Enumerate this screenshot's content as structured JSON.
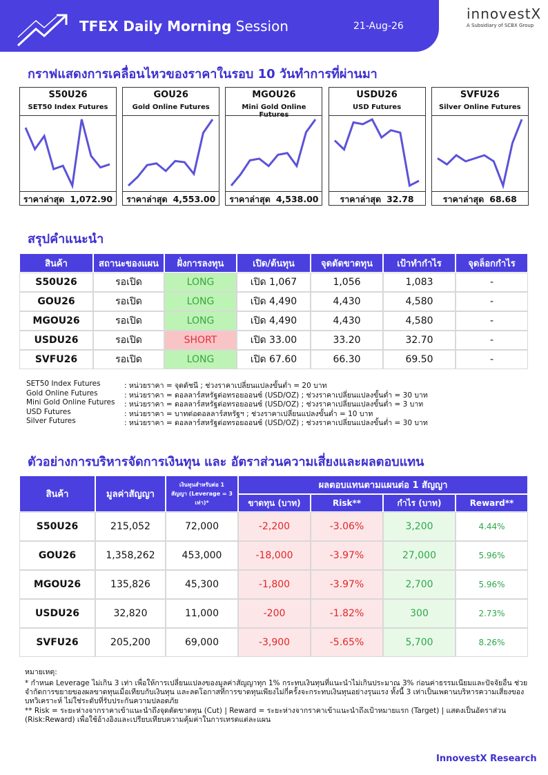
{
  "header": {
    "title_bold": "TFEX Daily Morning",
    "title_rest": "Session",
    "date": "21-Aug-26",
    "logo": "innovestX",
    "logo_sub": "A Subsidiary of SCBX Group"
  },
  "price_charts": {
    "title": "กราฟแสดงการเคลื่อนไหวของราคาในรอบ 10 วันทำการที่ผ่านมา",
    "color": "#5b52d8",
    "items": [
      {
        "symbol": "S50U26",
        "name": "SET50 Index Futures",
        "last_label": "ราคาล่าสุด",
        "last": "1,072.90",
        "values": [
          1095,
          1082,
          1090,
          1070,
          1072,
          1060,
          1100,
          1078,
          1071,
          1072.9
        ]
      },
      {
        "symbol": "GOU26",
        "name": "Gold Online Futures",
        "last_label": "ราคาล่าสุด",
        "last": "4,553.00",
        "values": [
          4440,
          4455,
          4475,
          4478,
          4465,
          4482,
          4480,
          4460,
          4530,
          4553
        ]
      },
      {
        "symbol": "MGOU26",
        "name": "Mini Gold Online Futures",
        "last_label": "ราคาล่าสุด",
        "last": "4,538.00",
        "values": [
          4420,
          4440,
          4465,
          4468,
          4455,
          4475,
          4478,
          4455,
          4515,
          4538
        ]
      },
      {
        "symbol": "USDU26",
        "name": "USD Futures",
        "last_label": "ราคาล่าสุด",
        "last": "32.78",
        "values": [
          33.45,
          33.3,
          33.75,
          33.72,
          33.8,
          33.5,
          33.62,
          33.58,
          32.7,
          32.78
        ]
      },
      {
        "symbol": "SVFU26",
        "name": "Silver Online Futures",
        "last_label": "ราคาล่าสุด",
        "last": "68.68",
        "values": [
          67.4,
          67.2,
          67.5,
          67.3,
          67.4,
          67.5,
          67.3,
          66.5,
          67.9,
          68.68
        ]
      }
    ]
  },
  "recommendations": {
    "title": "สรุปคำแนะนำ",
    "direction_colors": {
      "LONG": "#bdf3b5",
      "SHORT": "#f9c4c6"
    },
    "columns": [
      "สินค้า",
      "สถานะของแผน",
      "ฝั่งการลงทุน",
      "เปิด/ต้นทุน",
      "จุดตัดขาดทุน",
      "เป้าทำกำไร",
      "จุดล็อกกำไร"
    ],
    "rows": [
      [
        "S50U26",
        "รอเปิด",
        "LONG",
        "เปิด  1,067",
        "1,056",
        "1,083",
        "-"
      ],
      [
        "GOU26",
        "รอเปิด",
        "LONG",
        "เปิด  4,490",
        "4,430",
        "4,580",
        "-"
      ],
      [
        "MGOU26",
        "รอเปิด",
        "LONG",
        "เปิด  4,490",
        "4,430",
        "4,580",
        "-"
      ],
      [
        "USDU26",
        "รอเปิด",
        "SHORT",
        "เปิด  33.00",
        "33.20",
        "32.70",
        "-"
      ],
      [
        "SVFU26",
        "รอเปิด",
        "LONG",
        "เปิด  67.60",
        "66.30",
        "69.50",
        "-"
      ]
    ]
  },
  "notes": [
    [
      "SET50 Index Futures",
      ": หน่วยราคา = จุดดัชนี ; ช่วงราคาเปลี่ยนแปลงขั้นต่ำ = 20 บาท"
    ],
    [
      "Gold Online Futures",
      ": หน่วยราคา = ดอลลาร์สหรัฐต่อทรอยออนซ์ (USD/OZ) ; ช่วงราคาเปลี่ยนแปลงขั้นต่ำ = 30 บาท"
    ],
    [
      "Mini Gold Online Futures",
      ": หน่วยราคา = ดอลลาร์สหรัฐต่อทรอยออนซ์ (USD/OZ) ; ช่วงราคาเปลี่ยนแปลงขั้นต่ำ = 3 บาท"
    ],
    [
      "USD Futures",
      ": หน่วยราคา = บาทต่อดอลลาร์สหรัฐฯ ; ช่วงราคาเปลี่ยนแปลงขั้นต่ำ = 10 บาท"
    ],
    [
      "Silver Futures",
      ": หน่วยราคา = ดอลลาร์สหรัฐต่อทรอยออนซ์ (USD/OZ) ; ช่วงราคาเปลี่ยนแปลงขั้นต่ำ = 30 บาท"
    ]
  ],
  "risk_table": {
    "title": "ตัวอย่างการบริหารจัดการเงินทุน และ อัตราส่วนความเสี่ยงและผลตอบแทน",
    "columns": [
      "สินค้า",
      "มูลค่าสัญญา",
      "เงินทุนสำหรับต่อ 1 สัญญา (Leverage = 3 เท่า)*"
    ],
    "group": "ผลตอบแทนตามแผนต่อ 1 สัญญา",
    "sub_columns": [
      "ขาดทุน (บาท)",
      "Risk**",
      "กำไร (บาท)",
      "Reward**"
    ],
    "rows": [
      [
        "S50U26",
        "215,052",
        "72,000",
        "-2,200",
        "-3.06%",
        "3,200",
        "4.44%"
      ],
      [
        "GOU26",
        "1,358,262",
        "453,000",
        "-18,000",
        "-3.97%",
        "27,000",
        "5.96%"
      ],
      [
        "MGOU26",
        "135,826",
        "45,300",
        "-1,800",
        "-3.97%",
        "2,700",
        "5.96%"
      ],
      [
        "USDU26",
        "32,820",
        "11,000",
        "-200",
        "-1.82%",
        "300",
        "2.73%"
      ],
      [
        "SVFU26",
        "205,200",
        "69,000",
        "-3,900",
        "-5.65%",
        "5,700",
        "8.26%"
      ]
    ]
  },
  "footnotes": [
    "หมายเหตุ:",
    "* กำหนด Leverage ไม่เกิน 3 เท่า เพื่อให้การเปลี่ยนแปลงของมูลค่าสัญญาทุก 1% กระทบเงินทุนที่แนะนำไม่เกินประมาณ 3% ก่อนค่าธรรมเนียมและปัจจัยอื่น ช่วยจำกัดการขยายของผลขาดทุนเมื่อเทียบกับเงินทุน และลดโอกาสที่การขาดทุนเพียงไม่กี่ครั้งจะกระทบเงินทุนอย่างรุนแรง ทั้งนี้ 3 เท่าเป็นเพดานบริหารความเสี่ยงของบทวิเคราะห์ ไม่ใช่ระดับที่รับประกันความปลอดภัย",
    "** Risk = ระยะห่างจากราคาเข้าแนะนำถึงจุดตัดขาดทุน (Cut) | Reward = ระยะห่างจากราคาเข้าแนะนำถึงเป้าหมายแรก (Target) | แสดงเป็นอัตราส่วน (Risk:Reward) เพื่อใช้อ้างอิงและเปรียบเทียบความคุ้มค่าในการเทรดแต่ละแผน"
  ],
  "footer": "InnovestX Research"
}
